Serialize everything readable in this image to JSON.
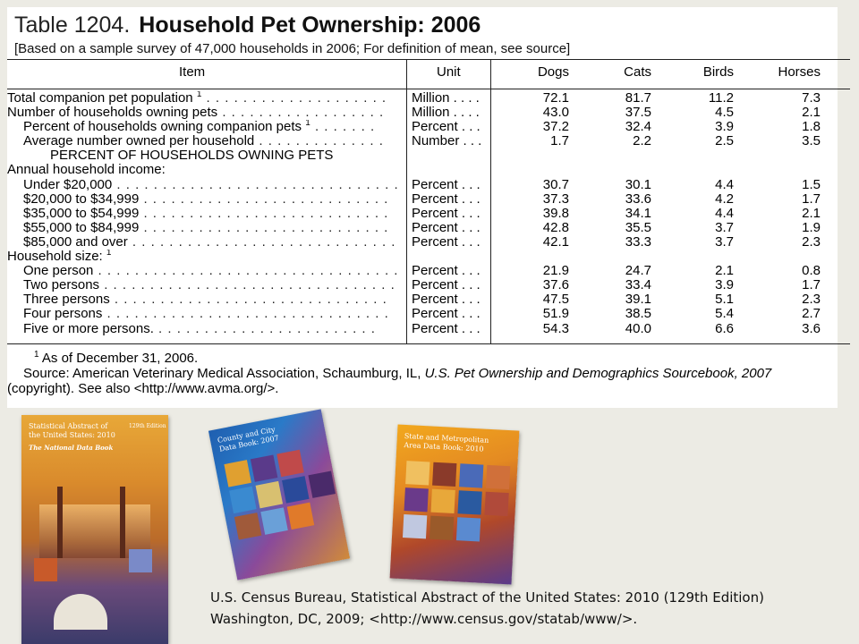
{
  "table": {
    "number": "Table 1204.",
    "title": "Household Pet Ownership: 2006",
    "subtitle": "[Based on a sample survey of 47,000 households in 2006; For definition of mean, see source]",
    "headers": {
      "item": "Item",
      "unit": "Unit",
      "dogs": "Dogs",
      "cats": "Cats",
      "birds": "Birds",
      "horses": "Horses"
    },
    "rows": [
      {
        "label": "Total companion pet population",
        "sup": "1",
        "dots": " . . . . . . . . . . . . . . . . . . . .",
        "unit": "Million . . . .",
        "values": [
          "72.1",
          "81.7",
          "11.2",
          "7.3"
        ]
      },
      {
        "label": "Number of households owning pets",
        "sup": "",
        "dots": " . . . . . . . . . . . . . . . . . .",
        "unit": "Million . . . .",
        "values": [
          "43.0",
          "37.5",
          "4.5",
          "2.1"
        ]
      },
      {
        "label": "Percent of households owning companion pets",
        "sup": "1",
        "dots": " . . . . . . .",
        "unit": "Percent . . .",
        "values": [
          "37.2",
          "32.4",
          "3.9",
          "1.8"
        ],
        "indent": true
      },
      {
        "label": "Average number owned per household",
        "sup": "",
        "dots": " . . . . . . . . . . . . . .",
        "unit": "Number . . .",
        "values": [
          "1.7",
          "2.2",
          "2.5",
          "3.5"
        ],
        "indent": true
      },
      {
        "label": "PERCENT OF HOUSEHOLDS OWNING PETS",
        "center": true
      },
      {
        "label": "Annual household income:"
      },
      {
        "label": "Under $20,000",
        "sup": "",
        "dots": " . . . . . . . . . . . . . . . . . . . . . . . . . . . . . . .",
        "unit": "Percent . . .",
        "values": [
          "30.7",
          "30.1",
          "4.4",
          "1.5"
        ],
        "indent": true
      },
      {
        "label": "$20,000 to $34,999",
        "sup": "",
        "dots": " . . . . . . . . . . . . . . . . . . . . . . . . . . .",
        "unit": "Percent . . .",
        "values": [
          "37.3",
          "33.6",
          "4.2",
          "1.7"
        ],
        "indent": true
      },
      {
        "label": "$35,000 to $54,999",
        "sup": "",
        "dots": " . . . . . . . . . . . . . . . . . . . . . . . . . . .",
        "unit": "Percent . . .",
        "values": [
          "39.8",
          "34.1",
          "4.4",
          "2.1"
        ],
        "indent": true
      },
      {
        "label": "$55,000 to $84,999",
        "sup": "",
        "dots": " . . . . . . . . . . . . . . . . . . . . . . . . . . .",
        "unit": "Percent . . .",
        "values": [
          "42.8",
          "35.5",
          "3.7",
          "1.9"
        ],
        "indent": true
      },
      {
        "label": "$85,000 and over",
        "sup": "",
        "dots": " . . . . . . . . . . . . . . . . . . . . . . . . . . . . .",
        "unit": "Percent . . .",
        "values": [
          "42.1",
          "33.3",
          "3.7",
          "2.3"
        ],
        "indent": true
      },
      {
        "label": "Household size:",
        "sup": "1"
      },
      {
        "label": "One person",
        "sup": "",
        "dots": " . . . . . . . . . . . . . . . . . . . . . . . . . . . . . . . . .",
        "unit": "Percent . . .",
        "values": [
          "21.9",
          "24.7",
          "2.1",
          "0.8"
        ],
        "indent": true
      },
      {
        "label": "Two persons",
        "sup": "",
        "dots": " . . . . . . . . . . . . . . . . . . . . . . . . . . . . . . . .",
        "unit": "Percent . . .",
        "values": [
          "37.6",
          "33.4",
          "3.9",
          "1.7"
        ],
        "indent": true
      },
      {
        "label": "Three persons",
        "sup": "",
        "dots": " . . . . . . . . . . . . . . . . . . . . . . . . . . . . . .",
        "unit": "Percent . . .",
        "values": [
          "47.5",
          "39.1",
          "5.1",
          "2.3"
        ],
        "indent": true
      },
      {
        "label": "Four persons",
        "sup": "",
        "dots": " . . . . . . . . . . . . . . . . . . . . . . . . . . . . . . .",
        "unit": "Percent . . .",
        "values": [
          "51.9",
          "38.5",
          "5.4",
          "2.7"
        ],
        "indent": true
      },
      {
        "label": "Five or more persons.",
        "sup": "",
        "dots": " . . . . . . . . . . . . . . . . . . . . . . . .",
        "unit": "Percent . . .",
        "values": [
          "54.3",
          "40.0",
          "6.6",
          "3.6"
        ],
        "indent": true
      }
    ],
    "footnote_marker": "1",
    "footnote": "As of December 31, 2006.",
    "source_prefix": "Source: American Veterinary Medical Association, Schaumburg, IL, ",
    "source_title": "U.S. Pet Ownership and Demographics Sourcebook, 2007",
    "source_suffix": "(copyright). See also <http://www.avma.org/>."
  },
  "books": {
    "book1_title": "Statistical Abstract of the United States: 2010",
    "book1_edition": "129th Edition",
    "book1_subtitle": "The National Data Book",
    "book2_title": "County and City Data Book: 2007",
    "book3_title": "State and Metropolitan Area Data Book: 2010"
  },
  "caption": "U.S. Census Bureau, Statistical Abstract of the United States: 2010 (129th Edition) Washington, DC, 2009; <http://www.census.gov/statab/www/>."
}
